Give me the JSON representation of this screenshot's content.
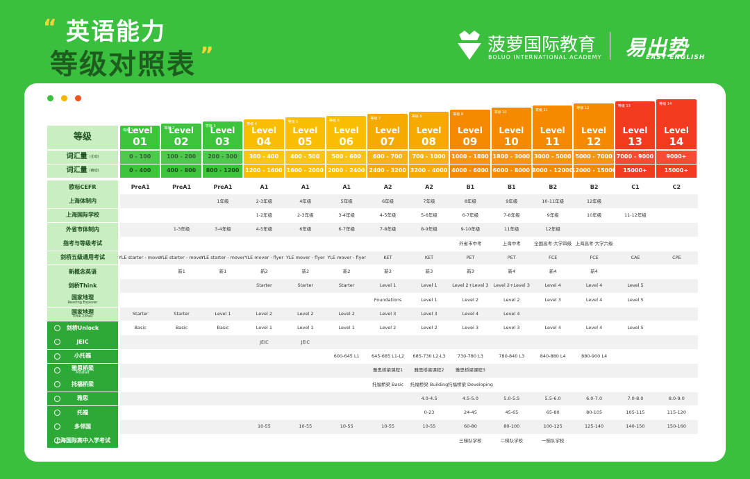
{
  "header": {
    "title_line1": "英语能力",
    "title_line2": "等级对照表"
  },
  "brand": {
    "name": "菠萝国际教育",
    "name_en": "BOLUO INTERNATIONAL ACADEMY",
    "partner": "易出势",
    "partner_en": "EASY ENGLISH"
  },
  "table": {
    "corner": "等级",
    "levels": [
      {
        "tag": "等级 1",
        "word": "Level",
        "number": "01",
        "color": "#3cc43a"
      },
      {
        "tag": "等级 2",
        "word": "Level",
        "number": "02",
        "color": "#3cc43a"
      },
      {
        "tag": "等级 3",
        "word": "Level",
        "number": "03",
        "color": "#3cc43a"
      },
      {
        "tag": "等级 4",
        "word": "Level",
        "number": "04",
        "color": "#f9be00"
      },
      {
        "tag": "等级 5",
        "word": "Level",
        "number": "05",
        "color": "#f9be00"
      },
      {
        "tag": "等级 6",
        "word": "Level",
        "number": "06",
        "color": "#f9be00"
      },
      {
        "tag": "等级 7",
        "word": "Level",
        "number": "07",
        "color": "#f6aa00"
      },
      {
        "tag": "等级 8",
        "word": "Level",
        "number": "08",
        "color": "#f6aa00"
      },
      {
        "tag": "等级 9",
        "word": "Level",
        "number": "09",
        "color": "#f58a00"
      },
      {
        "tag": "等级 10",
        "word": "Level",
        "number": "10",
        "color": "#f58a00"
      },
      {
        "tag": "等级 11",
        "word": "Level",
        "number": "11",
        "color": "#f58a00"
      },
      {
        "tag": "等级 12",
        "word": "Level",
        "number": "12",
        "color": "#f58a00"
      },
      {
        "tag": "等级 13",
        "word": "Level",
        "number": "13",
        "color": "#f23a1e"
      },
      {
        "tag": "等级 14",
        "word": "Level",
        "number": "14",
        "color": "#f23a1e"
      }
    ],
    "vocab": {
      "label": "词汇量",
      "active_note": "(主动)",
      "passive_note": "(被动)",
      "active": [
        "0 - 100",
        "100 - 200",
        "200 - 300",
        "300 - 400",
        "400 - 500",
        "500 - 600",
        "600 - 700",
        "700 - 1000",
        "1000 - 1800",
        "1800 - 3000",
        "3000 - 5000",
        "5000 - 7000",
        "7000 - 9000",
        "9000+"
      ],
      "passive": [
        "0 - 400",
        "400 - 800",
        "800 - 1200",
        "1200 - 1600",
        "1600 - 2000",
        "2000 - 2400",
        "2400 - 3200",
        "3200 - 4000",
        "4000 - 6000",
        "6000 - 8000",
        "8000 - 12000",
        "12000 - 15000",
        "15000+",
        "15000+"
      ]
    },
    "rows": [
      {
        "label": "欧标CEFR",
        "cells": [
          "PreA1",
          "PreA1",
          "PreA1",
          "A1",
          "A1",
          "A1",
          "A2",
          "A2",
          "B1",
          "B1",
          "B2",
          "B2",
          "C1",
          "C2"
        ]
      },
      {
        "label": "上海体制内",
        "cells": [
          null,
          null,
          "1年级",
          "2-3年级",
          "4年级",
          "5年级",
          "6年级",
          "7年级",
          "8年级",
          "9年级",
          "10-11年级",
          "12年级",
          null,
          null
        ]
      },
      {
        "label": "上海国际学校",
        "cells": [
          null,
          null,
          null,
          "1-2年级",
          "2-3年级",
          "3-4年级",
          "4-5年级",
          "5-6年级",
          "6-7年级",
          "7-8年级",
          "9年级",
          "10年级",
          "11-12年级",
          null
        ]
      },
      {
        "label": "外省市体制内",
        "cells": [
          null,
          "1-3年级",
          "3-4年级",
          "4-5年级",
          "6年级",
          "6-7年级",
          "7-8年级",
          "8-9年级",
          "9-10年级",
          "11年级",
          "12年级",
          null,
          null,
          null
        ]
      },
      {
        "label": "指考与等级考试",
        "cells": [
          null,
          null,
          null,
          null,
          null,
          null,
          null,
          null,
          "外省市中考",
          "上海中考",
          "全国高考·大学四级",
          "上海高考·大学六级",
          null,
          null
        ]
      },
      {
        "label": "剑桥五级通用考试",
        "cells": [
          "YLE starter - mover",
          "YLE starter - mover",
          "YLE starter - mover",
          "YLE mover - flyer",
          "YLE mover - flyer",
          "YLE mover - flyer",
          "KET",
          "KET",
          "PET",
          "PET",
          "FCE",
          "FCE",
          "CAE",
          "CPE"
        ]
      },
      {
        "label": "新概念英语",
        "cells": [
          null,
          "新1",
          "新1",
          "新2",
          "新2",
          "新2",
          "新3",
          "新3",
          "新3",
          "新4",
          "新4",
          "新4",
          null,
          null
        ]
      },
      {
        "label": "剑桥Think",
        "cells": [
          null,
          null,
          null,
          "Starter",
          "Starter",
          "Starter",
          "Level 1",
          "Level 1",
          "Level 2+Level 3",
          "Level 2+Level 3",
          "Level 4",
          "Level 4",
          "Level 5",
          null
        ]
      },
      {
        "label": "国家地理",
        "sublabel": "Reading Explorer",
        "cells": [
          null,
          null,
          null,
          null,
          null,
          null,
          "Foundations",
          "Level 1",
          "Level 2",
          "Level 2",
          "Level 3",
          "Level 4",
          "Level 5",
          null
        ]
      },
      {
        "label": "国家地理",
        "sublabel": "Time Zones",
        "cells": [
          "Starter",
          "Starter",
          "Level 1",
          "Level 2",
          "Level 2",
          "Level 2",
          "Level 3",
          "Level 3",
          "Level 4",
          "Level 4",
          null,
          null,
          null,
          null
        ]
      },
      {
        "label": "剑桥Unlock",
        "course": true,
        "cells": [
          "Basic",
          "Basic",
          "Basic",
          "Level 1",
          "Level 1",
          "Level 1",
          "Level 2",
          "Level 2",
          "Level 3",
          "Level 3",
          "Level 4",
          "Level 4",
          "Level 5",
          null
        ]
      },
      {
        "label": "JEIC",
        "course": true,
        "cells": [
          null,
          null,
          null,
          "JEIC",
          "JEIC",
          null,
          null,
          null,
          null,
          null,
          null,
          null,
          null,
          null
        ]
      },
      {
        "label": "小托福",
        "course": true,
        "cells": [
          null,
          null,
          null,
          null,
          null,
          "600-645 L1",
          "645-685 L1-L2",
          "685-730 L2-L3",
          "730-780 L3",
          "780-840 L3",
          "840-880 L4",
          "880-900 L4",
          null,
          null
        ]
      },
      {
        "label": "雅思桥梁",
        "sublabel": "Mindset",
        "course": true,
        "cells": [
          null,
          null,
          null,
          null,
          null,
          null,
          "雅思桥梁课程1",
          "雅思桥梁课程2",
          "雅思桥梁课程3",
          null,
          null,
          null,
          null,
          null
        ]
      },
      {
        "label": "托福桥梁",
        "course": true,
        "cells": [
          null,
          null,
          null,
          null,
          null,
          null,
          "托福桥梁 Basic",
          "托福桥梁 Building",
          "托福桥梁 Developing",
          null,
          null,
          null,
          null,
          null
        ]
      },
      {
        "label": "雅思",
        "course": true,
        "cells": [
          null,
          null,
          null,
          null,
          null,
          null,
          null,
          "4.0-4.5",
          "4.5-5.0",
          "5.0-5.5",
          "5.5-6.0",
          "6.0-7.0",
          "7.0-8.0",
          "8.0-9.0"
        ]
      },
      {
        "label": "托福",
        "course": true,
        "cells": [
          null,
          null,
          null,
          null,
          null,
          null,
          null,
          "0-23",
          "24-45",
          "45-65",
          "65-80",
          "80-105",
          "105-115",
          "115-120"
        ]
      },
      {
        "label": "多邻国",
        "course": true,
        "cells": [
          null,
          null,
          null,
          "10-55",
          "10-55",
          "10-55",
          "10-55",
          "10-55",
          "60-80",
          "80-100",
          "100-125",
          "125-140",
          "140-150",
          "150-160"
        ]
      },
      {
        "label": "上海国际高中入学考试",
        "course": true,
        "cells": [
          null,
          null,
          null,
          null,
          null,
          null,
          null,
          null,
          "三梯队学校",
          "二梯队学校",
          "一梯队学校",
          null,
          null,
          null
        ]
      }
    ]
  }
}
